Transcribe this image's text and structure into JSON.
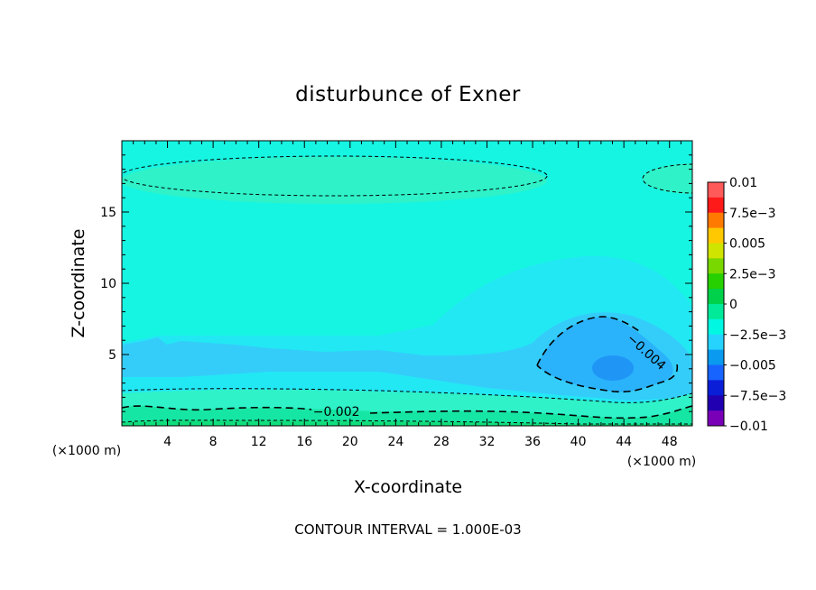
{
  "chart_data": {
    "type": "heatmap",
    "title": "disturbunce of Exner",
    "xlabel": "X-coordinate",
    "ylabel": "Z-coordinate",
    "x_unit": "(×1000 m)",
    "x_unit_right": "(×1000 m)",
    "xlim": [
      0,
      50
    ],
    "ylim": [
      0,
      20
    ],
    "x_ticks": [
      "4",
      "8",
      "12",
      "16",
      "20",
      "24",
      "28",
      "32",
      "36",
      "40",
      "44",
      "48"
    ],
    "y_ticks": [
      "5",
      "10",
      "15"
    ],
    "footer": "CONTOUR INTERVAL = 1.000E-03",
    "contour_labels": [
      {
        "text": "−0.002",
        "x": 18.8,
        "z": 1.0,
        "rotate": 0
      },
      {
        "text": "−0.004",
        "x": 46.0,
        "z": 5.2,
        "rotate": 42
      }
    ],
    "colorbar": {
      "labels": [
        "0.01",
        "7.5e−3",
        "0.005",
        "2.5e−3",
        "0",
        "−2.5e−3",
        "−0.005",
        "−7.5e−3",
        "−0.01"
      ],
      "colors": [
        "#ff5a5a",
        "#ff1a1a",
        "#ff7a00",
        "#ffc800",
        "#cfe400",
        "#78d800",
        "#27d000",
        "#00d14a",
        "#00ea9a",
        "#00f7e2",
        "#26d3ff",
        "#0a9af0",
        "#1864ff",
        "#0a1ed8",
        "#2000b0",
        "#7a00b8"
      ]
    },
    "colors": {
      "background_field": "#16f5e2",
      "band_light": "#2ff2c8",
      "band_green": "#16e6a4",
      "band_bottom": "#10de7c",
      "mid_cyan": "#22e8f4",
      "blue_low": "#34cdfa",
      "blue_mid": "#2ab2fb",
      "blue_core": "#1f95f5",
      "contour_line": "#000000"
    }
  }
}
